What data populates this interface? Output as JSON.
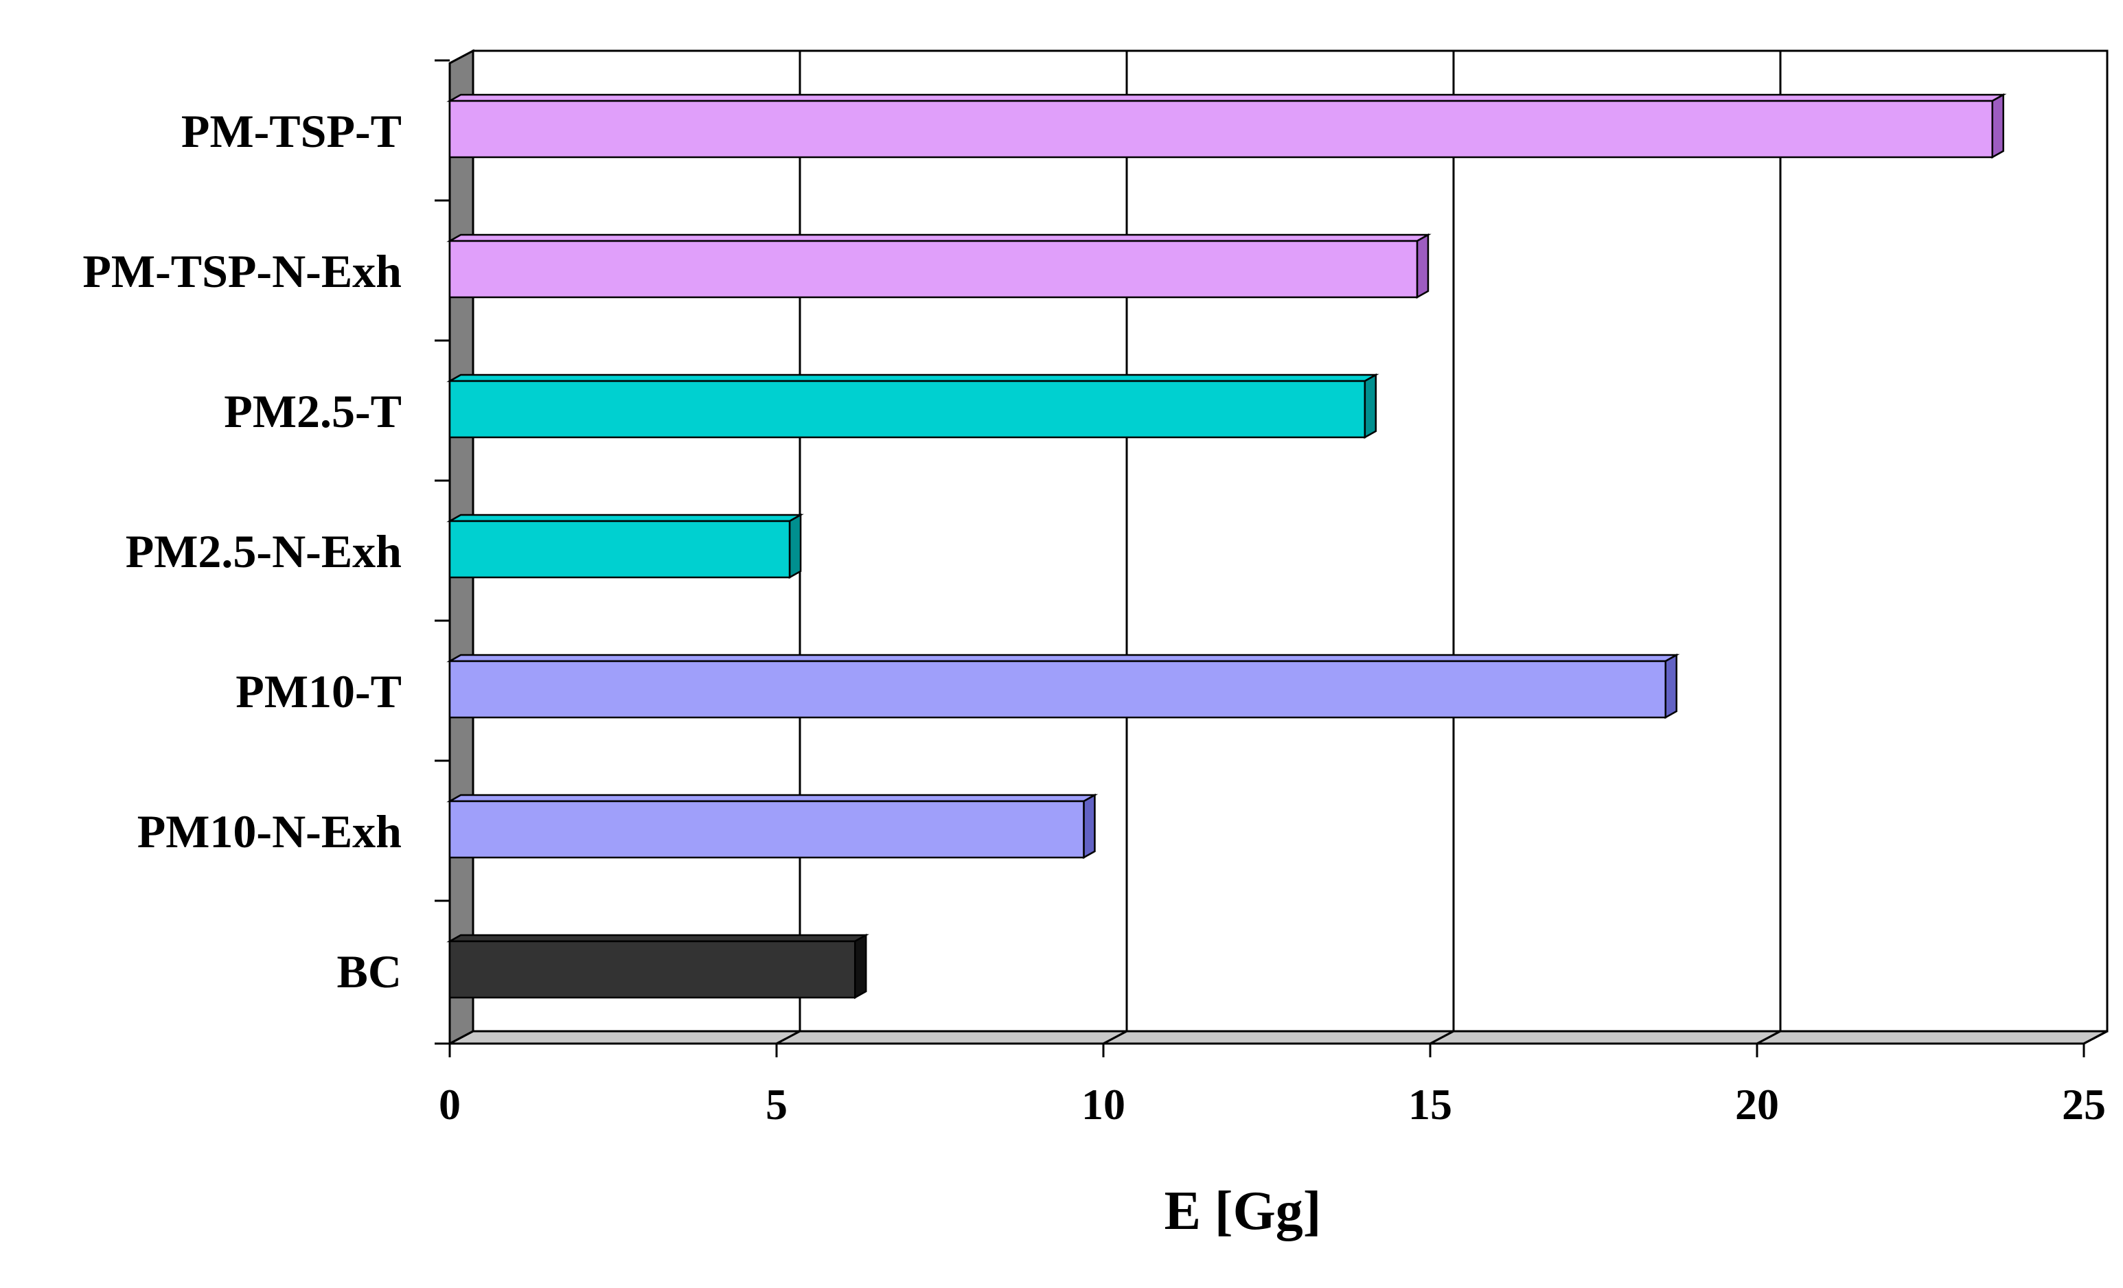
{
  "chart_data": {
    "type": "bar",
    "orientation": "horizontal",
    "style": "3d",
    "categories": [
      "PM-TSP-T",
      "PM-TSP-N-Exh",
      "PM2.5-T",
      "PM2.5-N-Exh",
      "PM10-T",
      "PM10-N-Exh",
      "BC"
    ],
    "values": [
      23.6,
      14.8,
      14.0,
      5.2,
      18.6,
      9.7,
      6.2
    ],
    "colors": [
      "#e09ffa",
      "#e09ffa",
      "#00d0d0",
      "#00d0d0",
      "#9f9ffa",
      "#9f9ffa",
      "#333333"
    ],
    "side_colors": [
      "#9d5cc0",
      "#9d5cc0",
      "#008f8f",
      "#008f8f",
      "#6262c4",
      "#6262c4",
      "#111111"
    ],
    "xlabel": "E [Gg]",
    "xlim": [
      0,
      25
    ],
    "xticks": [
      0,
      5,
      10,
      15,
      20,
      25
    ],
    "xtick_labels": [
      "0",
      "5",
      "10",
      "15",
      "20",
      "25"
    ],
    "grid": "vertical",
    "legend": "none"
  }
}
